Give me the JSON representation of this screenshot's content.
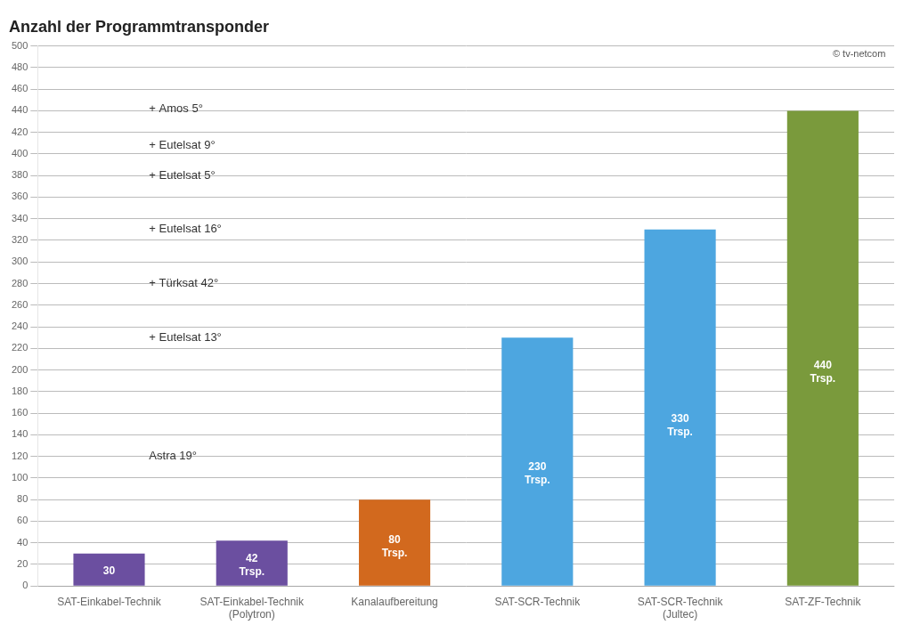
{
  "chart_data": {
    "type": "bar",
    "title": "Anzahl der Programmtransponder",
    "categories": [
      "SAT-Einkabel-Technik",
      "SAT-Einkabel-Technik\n(Polytron)",
      "Kanalaufbereitung",
      "SAT-SCR-Technik",
      "SAT-SCR-Technik\n(Jultec)",
      "SAT-ZF-Technik"
    ],
    "values": [
      30,
      42,
      80,
      230,
      330,
      440
    ],
    "value_labels": [
      "30",
      "42\nTrsp.",
      "80\nTrsp.",
      "230\nTrsp.",
      "330\nTrsp.",
      "440\nTrsp."
    ],
    "data_labels": true,
    "colors": [
      "#6B4FA0",
      "#6B4FA0",
      "#D2691E",
      "#4DA6E0",
      "#4DA6E0",
      "#7A9A3C"
    ],
    "ylim": [
      0,
      500
    ],
    "yticks": [
      0,
      20,
      40,
      60,
      80,
      100,
      120,
      140,
      160,
      180,
      200,
      220,
      240,
      260,
      280,
      300,
      320,
      340,
      360,
      380,
      400,
      420,
      440,
      460,
      480,
      500
    ],
    "grid": true,
    "annotations": [
      {
        "text": "Astra 19°",
        "y": 120
      },
      {
        "text": "+ Eutelsat 13°",
        "y": 230
      },
      {
        "text": "+ Türksat 42°",
        "y": 280
      },
      {
        "text": "+ Eutelsat 16°",
        "y": 330
      },
      {
        "text": "+ Eutelsat 5°",
        "y": 380
      },
      {
        "text": "+ Eutelsat 9°",
        "y": 408
      },
      {
        "text": "+ Amos 5°",
        "y": 442
      },
      {
        "text": "© tv-netcom"
      }
    ]
  }
}
